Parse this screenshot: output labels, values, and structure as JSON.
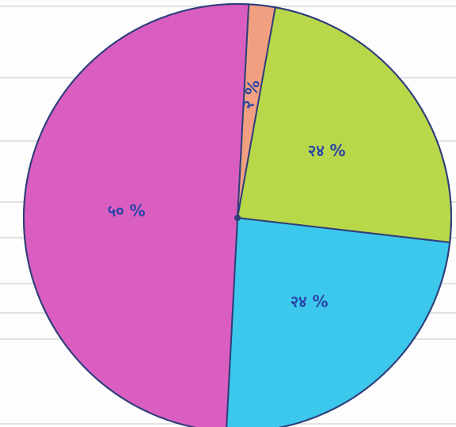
{
  "chart_data": {
    "type": "pie",
    "title": "",
    "slices": [
      {
        "value": 2,
        "label": "२ %",
        "color": "#F0A080"
      },
      {
        "value": 24,
        "label": "२४ %",
        "color": "#B8D84A"
      },
      {
        "value": 24,
        "label": "२४ %",
        "color": "#3CC8EC"
      },
      {
        "value": 50,
        "label": "५० %",
        "color": "#DA5EC0"
      }
    ],
    "label_color": "#2A45A8",
    "edge_color": "#2F3F7A",
    "paper_line_color": "#C8C8C8"
  }
}
